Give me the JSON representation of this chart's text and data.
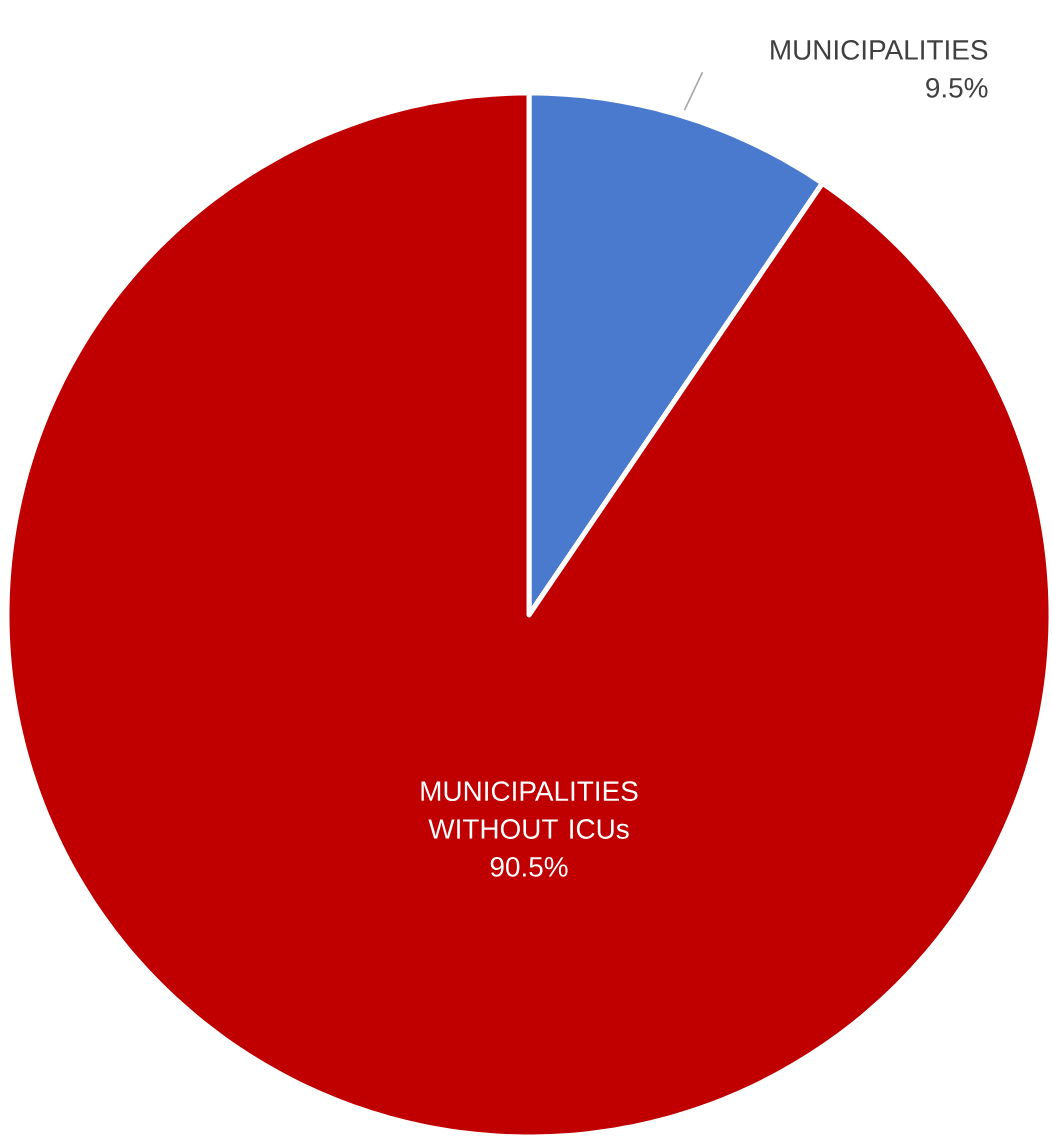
{
  "chart_data": {
    "type": "pie",
    "categories": [
      "MUNICIPALITIES",
      "MUNICIPALITIES WITHOUT ICUs"
    ],
    "values": [
      9.5,
      90.5
    ],
    "colors": [
      "#4a7acd",
      "#c00000"
    ],
    "value_labels": [
      "9.5%",
      "90.5%"
    ]
  }
}
